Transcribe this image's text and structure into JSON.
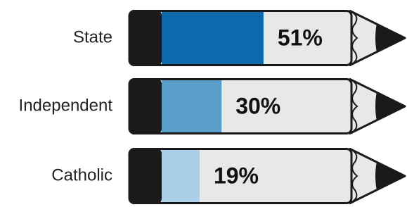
{
  "chart_data": {
    "type": "bar",
    "orientation": "horizontal",
    "categories": [
      "State",
      "Independent",
      "Catholic"
    ],
    "values": [
      51,
      30,
      19
    ],
    "value_labels": [
      "51%",
      "30%",
      "19%"
    ],
    "colors": [
      "#0b69ac",
      "#5a9fca",
      "#a9d0e6"
    ],
    "xlim": [
      0,
      100
    ]
  }
}
